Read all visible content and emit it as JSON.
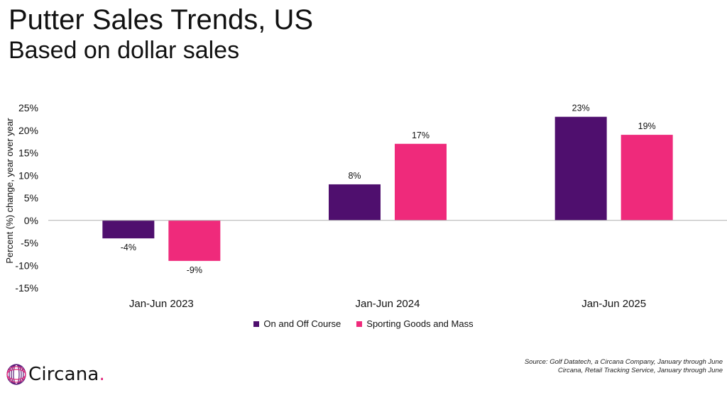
{
  "header": {
    "title": "Putter Sales Trends, US",
    "subtitle": "Based on dollar sales"
  },
  "colors": {
    "series1": "#4f0f6e",
    "series2": "#ef2a7b",
    "axis": "#b0b0b0",
    "logo_accent": "#e0267a"
  },
  "chart_data": {
    "type": "bar",
    "categories": [
      "Jan-Jun 2023",
      "Jan-Jun 2024",
      "Jan-Jun 2025"
    ],
    "series": [
      {
        "name": "On and Off Course",
        "values": [
          -4,
          8,
          23
        ],
        "labels": [
          "-4%",
          "8%",
          "23%"
        ]
      },
      {
        "name": "Sporting Goods and Mass",
        "values": [
          -9,
          17,
          19
        ],
        "labels": [
          "-9%",
          "17%",
          "19%"
        ]
      }
    ],
    "ylabel": "Percent (%) change, year over year",
    "xlabel": "",
    "ylim": [
      -15,
      25
    ],
    "yticks": [
      25,
      20,
      15,
      10,
      5,
      0,
      -5,
      -10,
      -15
    ],
    "ytick_labels": [
      "25%",
      "20%",
      "15%",
      "10%",
      "5%",
      "0%",
      "-5%",
      "-10%",
      "-15%"
    ],
    "grid": false,
    "legend_position": "bottom-center"
  },
  "source": {
    "line1": "Source: Golf Datatech, a Circana Company, January through June",
    "line2": "Circana, Retail Tracking Service, January through June"
  },
  "logo": {
    "name": "Circana",
    "dot": "."
  }
}
